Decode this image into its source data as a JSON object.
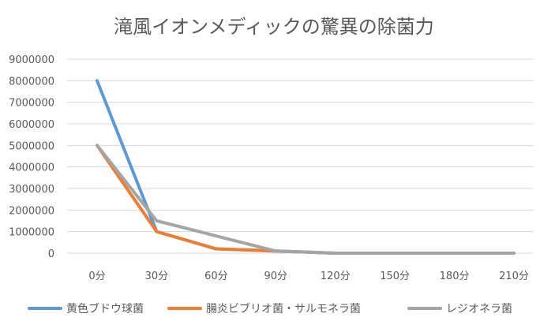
{
  "chart_data": {
    "type": "line",
    "title": "滝風イオンメディックの驚異の除菌力",
    "categories": [
      "0分",
      "30分",
      "60分",
      "90分",
      "120分",
      "150分",
      "180分",
      "210分"
    ],
    "ylim": [
      0,
      9000000
    ],
    "yticks": [
      "9000000",
      "8000000",
      "7000000",
      "6000000",
      "5000000",
      "4000000",
      "3000000",
      "2000000",
      "1000000",
      "0"
    ],
    "grid": true,
    "legend_position": "bottom",
    "series": [
      {
        "name": "黄色ブドウ球菌",
        "color": "#5B9BD5",
        "values": [
          8000000,
          1000000,
          200000,
          100000,
          0,
          0,
          0,
          0
        ]
      },
      {
        "name": "腸炎ビブリオ菌・サルモネラ菌",
        "color": "#ED7D31",
        "values": [
          5000000,
          1000000,
          200000,
          100000,
          0,
          0,
          0,
          0
        ]
      },
      {
        "name": "レジオネラ菌",
        "color": "#A5A5A5",
        "values": [
          5000000,
          1500000,
          800000,
          100000,
          0,
          0,
          0,
          0
        ]
      }
    ]
  }
}
